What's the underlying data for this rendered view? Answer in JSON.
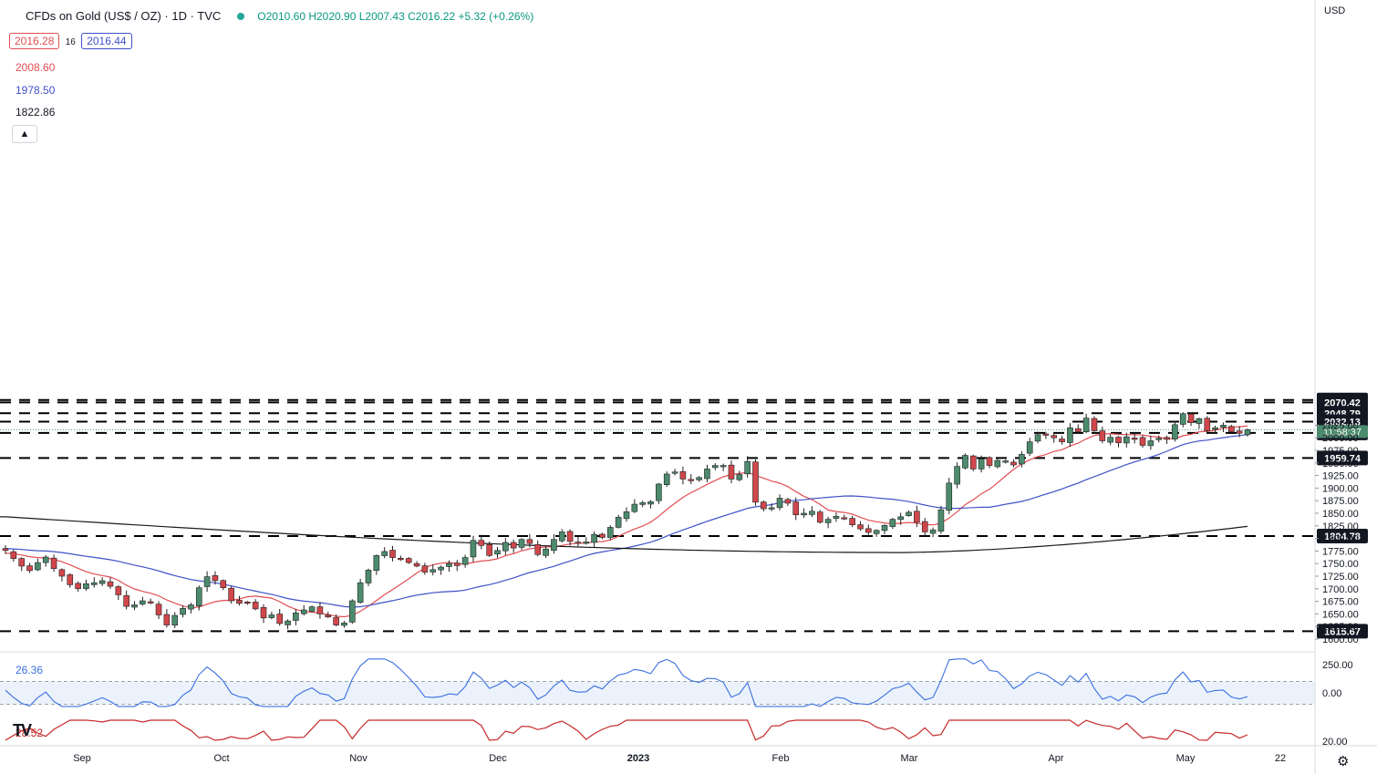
{
  "header": {
    "title": "CFDs on Gold (US$ / OZ) · 1D · TVC",
    "ohlc": "O2010.60  H2020.90  L2007.43  C2016.22  +5.32 (+0.26%)"
  },
  "legend": {
    "bid": "2016.28",
    "spread": "16",
    "ask": "2016.44",
    "ma_red": "2008.60",
    "ma_blue": "1978.50",
    "ma_black": "1822.86"
  },
  "axis": {
    "currency": "USD",
    "time_remaining": "11:58:37"
  },
  "colors": {
    "up": "#4c8b6d",
    "down": "#d1474b",
    "ma_red": "#e34d52",
    "ma_blue": "#3f51c8",
    "ma_black": "#1a1a1a",
    "osc_blue": "#3a6fe0",
    "osc_red": "#c62828"
  },
  "icons": {
    "collapse": "chevron-up-icon",
    "settings": "gear-icon",
    "logo": "tradingview-logo"
  },
  "chart_data": {
    "type": "candlestick",
    "price_ticks": [
      1600,
      1625,
      1650,
      1675,
      1700,
      1725,
      1750,
      1775,
      1800,
      1825,
      1850,
      1875,
      1900,
      1925,
      1950,
      1975,
      2000,
      2025
    ],
    "ylim": [
      1585,
      2085
    ],
    "xticks": [
      "Sep",
      "Oct",
      "Nov",
      "Dec",
      "2023",
      "Feb",
      "Mar",
      "Apr",
      "May",
      "22"
    ],
    "levels": [
      {
        "label": "2075.14",
        "value": 2075.14
      },
      {
        "label": "2070.42",
        "value": 2070.42
      },
      {
        "label": "2048.79",
        "value": 2048.79
      },
      {
        "label": "2032.13",
        "value": 2032.13
      },
      {
        "label": "2009.75",
        "value": 2009.75
      },
      {
        "label": "1959.74",
        "value": 1959.74
      },
      {
        "label": "1804.78",
        "value": 1804.78
      },
      {
        "label": "1615.67",
        "value": 1615.67
      }
    ],
    "closes": [
      1776,
      1760,
      1745,
      1736,
      1752,
      1763,
      1740,
      1725,
      1708,
      1700,
      1710,
      1712,
      1716,
      1705,
      1688,
      1665,
      1668,
      1676,
      1672,
      1648,
      1628,
      1647,
      1661,
      1668,
      1702,
      1724,
      1716,
      1702,
      1676,
      1671,
      1673,
      1660,
      1642,
      1648,
      1631,
      1636,
      1652,
      1658,
      1664,
      1650,
      1644,
      1628,
      1632,
      1676,
      1712,
      1737,
      1766,
      1774,
      1762,
      1758,
      1752,
      1745,
      1733,
      1738,
      1743,
      1750,
      1746,
      1762,
      1796,
      1786,
      1766,
      1776,
      1792,
      1781,
      1798,
      1790,
      1768,
      1779,
      1798,
      1813,
      1794,
      1792,
      1793,
      1808,
      1802,
      1822,
      1842,
      1853,
      1868,
      1871,
      1873,
      1908,
      1928,
      1932,
      1918,
      1917,
      1921,
      1938,
      1945,
      1945,
      1918,
      1927,
      1953,
      1872,
      1859,
      1861,
      1880,
      1870,
      1847,
      1850,
      1854,
      1832,
      1838,
      1844,
      1840,
      1827,
      1819,
      1812,
      1816,
      1826,
      1838,
      1843,
      1852,
      1832,
      1813,
      1817,
      1857,
      1910,
      1943,
      1965,
      1938,
      1958,
      1945,
      1955,
      1954,
      1946,
      1967,
      1992,
      2006,
      2005,
      2000,
      1992,
      2020,
      2012,
      2039,
      2014,
      1994,
      2001,
      1990,
      2002,
      1998,
      1985,
      1994,
      1999,
      1997,
      2026,
      2048,
      2030,
      2038,
      2014,
      2020,
      2025,
      2012,
      2009,
      2016
    ],
    "ma_red_start": 1770,
    "ma_blue_start": 1780,
    "ma_black": {
      "start": 1843,
      "dip_value": 1772,
      "end": 1824
    },
    "oscillator": {
      "blue_label": "26.36",
      "red_label": "28.52",
      "ticks": [
        250.0,
        0.0,
        20.0
      ],
      "band": [
        100,
        -100
      ]
    }
  }
}
